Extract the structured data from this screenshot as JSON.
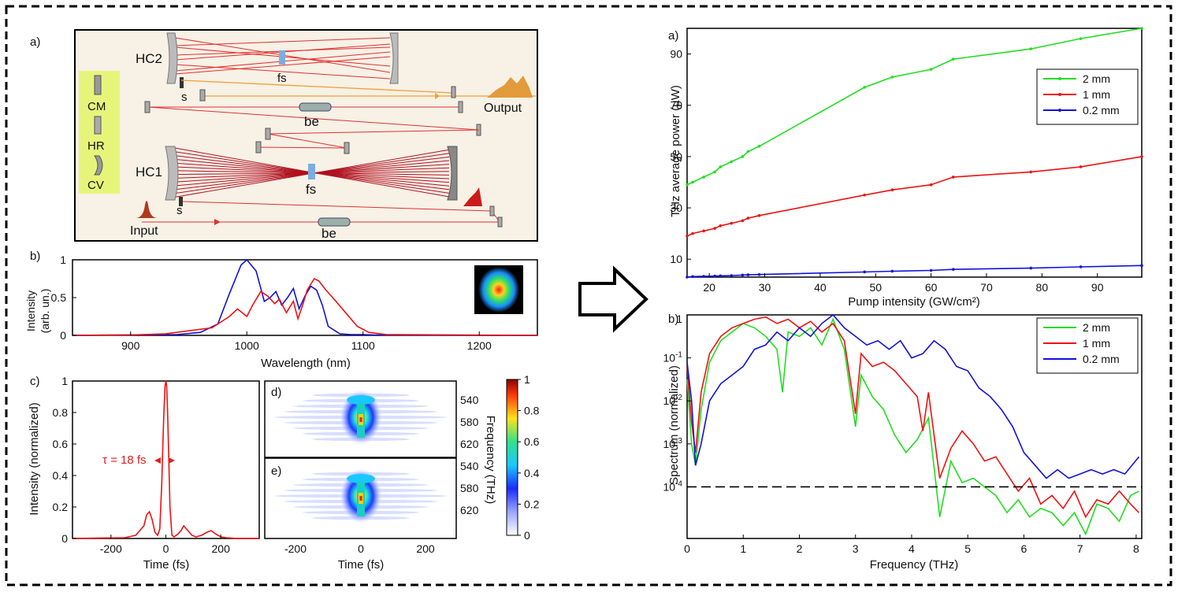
{
  "colors": {
    "green": "#22dd22",
    "red": "#ee1111",
    "blue": "#1111dd",
    "dark_red": "#b01020",
    "orange": "#f0a030",
    "yellow_box": "#e6f57a",
    "schematic_bg": "#f7f1e6"
  },
  "schematic": {
    "panel_label": "a)",
    "labels": {
      "hc2": "HC2",
      "hc1": "HC1",
      "fs_top": "fs",
      "fs_bottom": "fs",
      "s_top": "s",
      "s_bottom": "s",
      "be_top": "be",
      "be_bottom": "be",
      "output": "Output",
      "input": "Input"
    },
    "legend": [
      "CM",
      "HR",
      "CV"
    ]
  },
  "panel_b_left": {
    "panel_label": "b)",
    "ylabel_line1": "Intensity",
    "ylabel_line2": "(arb. un.)"
  },
  "panel_c_left": {
    "panel_label": "c)",
    "annotation": "τ = 18 fs"
  },
  "panel_d": {
    "panel_label": "d)"
  },
  "panel_e": {
    "panel_label": "e)"
  },
  "colorbar": {
    "ticks": [
      "1",
      "0.8",
      "0.6",
      "0.4",
      "0.2",
      "0"
    ]
  },
  "chart_data": [
    {
      "id": "spectrum_wavelength",
      "type": "line",
      "xlabel": "Wavelength (nm)",
      "ylabel": "Intensity (arb. un.)",
      "xlim": [
        850,
        1250
      ],
      "ylim": [
        0,
        1
      ],
      "xticks": [
        "900",
        "1000",
        "1100",
        "1200"
      ],
      "yticks": [
        "0",
        "0.5",
        "1"
      ],
      "series": [
        {
          "color": "blue",
          "x": [
            850,
            940,
            960,
            975,
            985,
            995,
            1000,
            1008,
            1015,
            1020,
            1025,
            1030,
            1035,
            1040,
            1045,
            1050,
            1055,
            1060,
            1065,
            1070,
            1080,
            1090,
            1100,
            1110,
            1250
          ],
          "y": [
            0,
            0.01,
            0.04,
            0.15,
            0.55,
            0.93,
            1.0,
            0.85,
            0.45,
            0.5,
            0.58,
            0.4,
            0.5,
            0.62,
            0.35,
            0.52,
            0.65,
            0.6,
            0.4,
            0.12,
            0.02,
            0.01,
            0.01,
            0.005,
            0
          ]
        },
        {
          "color": "red",
          "x": [
            850,
            900,
            930,
            950,
            970,
            985,
            992,
            1000,
            1005,
            1012,
            1018,
            1024,
            1028,
            1034,
            1040,
            1044,
            1048,
            1052,
            1058,
            1062,
            1068,
            1075,
            1085,
            1095,
            1105,
            1120,
            1250
          ],
          "y": [
            0,
            0.005,
            0.02,
            0.06,
            0.1,
            0.25,
            0.35,
            0.25,
            0.4,
            0.58,
            0.52,
            0.42,
            0.48,
            0.3,
            0.45,
            0.22,
            0.4,
            0.6,
            0.75,
            0.72,
            0.6,
            0.48,
            0.3,
            0.12,
            0.04,
            0.01,
            0
          ]
        }
      ]
    },
    {
      "id": "pulse_time",
      "type": "line",
      "xlabel": "Time (fs)",
      "ylabel": "Intensity (normalized)",
      "xlim": [
        -340,
        340
      ],
      "ylim": [
        0,
        1
      ],
      "xticks": [
        "-200",
        "0",
        "200"
      ],
      "yticks": [
        "0",
        "0.2",
        "0.4",
        "0.6",
        "0.8",
        "1"
      ],
      "series": [
        {
          "color": "red",
          "x": [
            -340,
            -150,
            -110,
            -95,
            -80,
            -70,
            -60,
            -50,
            -40,
            -30,
            -22,
            -15,
            -10,
            -6,
            -3,
            0,
            3,
            6,
            10,
            15,
            22,
            30,
            45,
            55,
            65,
            80,
            95,
            110,
            130,
            150,
            165,
            180,
            200,
            220,
            260,
            340
          ],
          "y": [
            0,
            0.005,
            0.02,
            0.05,
            0.08,
            0.15,
            0.17,
            0.12,
            0.04,
            0.02,
            0.06,
            0.35,
            0.65,
            0.85,
            0.97,
            1.0,
            0.97,
            0.82,
            0.55,
            0.2,
            0.02,
            0.01,
            0.03,
            0.05,
            0.08,
            0.05,
            0.02,
            0.01,
            0.02,
            0.04,
            0.05,
            0.03,
            0.01,
            0.005,
            0,
            0
          ]
        }
      ]
    },
    {
      "id": "thz_power",
      "type": "line",
      "panel_label": "a)",
      "xlabel": "Pump intensity  (GW/cm²)",
      "ylabel": "THz average power (µW)",
      "xlim": [
        16,
        98
      ],
      "ylim": [
        3,
        100
      ],
      "xticks": [
        "20",
        "30",
        "40",
        "50",
        "60",
        "70",
        "80",
        "90"
      ],
      "yticks": [
        "10",
        "30",
        "50",
        "70",
        "90"
      ],
      "legend_position": "top-right",
      "series": [
        {
          "name": "2    mm",
          "color": "green",
          "x": [
            16,
            17,
            19,
            21,
            22,
            24,
            26,
            27,
            29,
            48,
            53,
            60,
            64,
            78,
            87,
            98
          ],
          "y": [
            39,
            40,
            42,
            44,
            46,
            48,
            50,
            52,
            54,
            77,
            81,
            84,
            88,
            92,
            96,
            100
          ]
        },
        {
          "name": "1    mm",
          "color": "red",
          "x": [
            16,
            17,
            19,
            21,
            22,
            24,
            26,
            27,
            29,
            48,
            53,
            60,
            64,
            78,
            87,
            98
          ],
          "y": [
            19,
            20,
            21,
            22,
            23,
            24,
            25,
            26,
            27,
            35,
            37,
            39,
            42,
            44,
            46,
            50
          ]
        },
        {
          "name": "0.2 mm",
          "color": "blue",
          "x": [
            16,
            17,
            19,
            21,
            22,
            24,
            26,
            27,
            29,
            48,
            53,
            60,
            64,
            78,
            87,
            98
          ],
          "y": [
            3,
            3.2,
            3.3,
            3.4,
            3.5,
            3.6,
            3.8,
            3.9,
            4,
            5,
            5.3,
            5.6,
            6,
            6.5,
            7,
            7.5
          ]
        }
      ]
    },
    {
      "id": "thz_spectrum",
      "type": "line",
      "panel_label": "b)",
      "xlabel": "Frequency (THz)",
      "ylabel": "Spectrum (normalized)",
      "xlim": [
        0,
        8.1
      ],
      "ylim_log10": [
        -5.2,
        0
      ],
      "xticks": [
        "0",
        "1",
        "2",
        "3",
        "4",
        "5",
        "6",
        "7",
        "8"
      ],
      "yticks": [
        "1",
        "10-1",
        "10-2",
        "10-3",
        "10-4"
      ],
      "reference_line_log10": -4,
      "legend_position": "top-right",
      "series": [
        {
          "name": "2    mm",
          "color": "green",
          "x": [
            0,
            0.08,
            0.15,
            0.25,
            0.4,
            0.6,
            0.8,
            1.0,
            1.2,
            1.4,
            1.6,
            1.7,
            1.8,
            2.0,
            2.2,
            2.4,
            2.6,
            2.8,
            3.0,
            3.1,
            3.3,
            3.5,
            3.7,
            3.9,
            4.1,
            4.3,
            4.5,
            4.7,
            4.9,
            5.1,
            5.3,
            5.5,
            5.7,
            5.9,
            6.1,
            6.3,
            6.5,
            6.7,
            6.9,
            7.1,
            7.3,
            7.5,
            7.7,
            7.9,
            8.05
          ],
          "y": [
            -1.5,
            -3,
            -3.5,
            -2.2,
            -1.1,
            -0.6,
            -0.4,
            -0.2,
            -0.3,
            -0.5,
            -0.8,
            -1.8,
            -0.4,
            -0.5,
            -0.3,
            -0.7,
            -0.1,
            -0.8,
            -2.6,
            -1.4,
            -1.9,
            -2.2,
            -2.8,
            -3.2,
            -2.9,
            -2.4,
            -4.7,
            -3.4,
            -3.9,
            -3.8,
            -4.0,
            -4.2,
            -4.6,
            -4.3,
            -4.7,
            -4.5,
            -4.6,
            -4.9,
            -4.6,
            -5.1,
            -4.4,
            -4.5,
            -4.8,
            -4.2,
            -4.1
          ]
        },
        {
          "name": "1    mm",
          "color": "red",
          "x": [
            0,
            0.08,
            0.15,
            0.25,
            0.4,
            0.6,
            0.8,
            1.0,
            1.2,
            1.4,
            1.6,
            1.8,
            2.0,
            2.2,
            2.4,
            2.6,
            2.8,
            3.0,
            3.1,
            3.3,
            3.5,
            3.7,
            3.9,
            4.1,
            4.2,
            4.3,
            4.5,
            4.7,
            4.9,
            5.1,
            5.3,
            5.5,
            5.7,
            5.9,
            6.1,
            6.3,
            6.5,
            6.7,
            6.9,
            7.1,
            7.3,
            7.5,
            7.7,
            7.9,
            8.05
          ],
          "y": [
            -1.2,
            -2.5,
            -3.2,
            -1.8,
            -0.9,
            -0.5,
            -0.3,
            -0.2,
            -0.1,
            -0.05,
            -0.2,
            -0.1,
            -0.3,
            -0.15,
            -0.4,
            -0.2,
            -0.6,
            -2.3,
            -0.9,
            -1.2,
            -1.1,
            -1.3,
            -1.6,
            -1.9,
            -2.7,
            -1.8,
            -3.8,
            -3.1,
            -2.7,
            -3.0,
            -3.4,
            -3.3,
            -3.7,
            -4.1,
            -3.8,
            -4.4,
            -4.2,
            -4.5,
            -4.1,
            -4.7,
            -4.3,
            -4.4,
            -4.1,
            -4.4,
            -4.6
          ]
        },
        {
          "name": "0.2 mm",
          "color": "blue",
          "x": [
            0,
            0.08,
            0.15,
            0.25,
            0.4,
            0.6,
            0.8,
            1.0,
            1.2,
            1.4,
            1.6,
            1.8,
            2.0,
            2.2,
            2.4,
            2.6,
            2.8,
            3.0,
            3.2,
            3.4,
            3.6,
            3.8,
            4.0,
            4.2,
            4.4,
            4.6,
            4.8,
            5.0,
            5.2,
            5.4,
            5.6,
            5.8,
            6.0,
            6.2,
            6.4,
            6.6,
            6.8,
            7.0,
            7.2,
            7.4,
            7.6,
            7.8,
            8.05
          ],
          "y": [
            -1.1,
            -2.0,
            -3.5,
            -3.0,
            -2.0,
            -1.6,
            -1.4,
            -1.2,
            -0.8,
            -0.7,
            -0.4,
            -0.6,
            -0.3,
            -0.5,
            -0.2,
            0,
            -0.3,
            -0.5,
            -0.7,
            -0.6,
            -0.8,
            -0.6,
            -1.0,
            -0.9,
            -0.6,
            -0.8,
            -1.2,
            -1.3,
            -1.7,
            -1.9,
            -2.2,
            -2.6,
            -3.2,
            -3.5,
            -3.8,
            -3.6,
            -3.8,
            -3.7,
            -3.6,
            -3.7,
            -3.6,
            -3.7,
            -3.3
          ]
        }
      ]
    }
  ]
}
